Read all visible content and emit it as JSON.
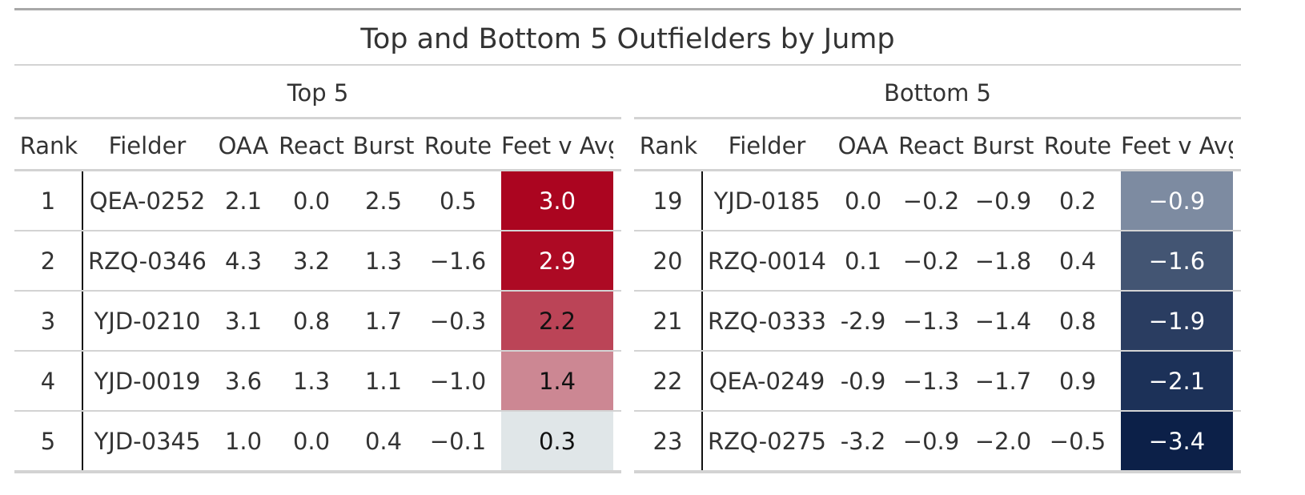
{
  "title": "Top and Bottom 5 Outfielders by Jump",
  "columns": {
    "rank": "Rank",
    "fielder": "Fielder",
    "oaa": "OAA",
    "react": "React",
    "burst": "Burst",
    "route": "Route",
    "feet": "Feet v Avg"
  },
  "top": {
    "label": "Top 5",
    "rows": [
      {
        "rank": "1",
        "fielder": "QEA-0252",
        "oaa": "2.1",
        "react": "0.0",
        "burst": "2.5",
        "route": "0.5",
        "feet": "3.0",
        "bg": "#ab0520",
        "fg": "#ffffff"
      },
      {
        "rank": "2",
        "fielder": "RZQ-0346",
        "oaa": "4.3",
        "react": "3.2",
        "burst": "1.3",
        "route": "−1.6",
        "feet": "2.9",
        "bg": "#ad0a24",
        "fg": "#ffffff"
      },
      {
        "rank": "3",
        "fielder": "YJD-0210",
        "oaa": "3.1",
        "react": "0.8",
        "burst": "1.7",
        "route": "−0.3",
        "feet": "2.2",
        "bg": "#bb4457",
        "fg": "#111111"
      },
      {
        "rank": "4",
        "fielder": "YJD-0019",
        "oaa": "3.6",
        "react": "1.3",
        "burst": "1.1",
        "route": "−1.0",
        "feet": "1.4",
        "bg": "#cc8793",
        "fg": "#111111"
      },
      {
        "rank": "5",
        "fielder": "YJD-0345",
        "oaa": "1.0",
        "react": "0.0",
        "burst": "0.4",
        "route": "−0.1",
        "feet": "0.3",
        "bg": "#e0e6e8",
        "fg": "#111111"
      }
    ]
  },
  "bottom": {
    "label": "Bottom 5",
    "rows": [
      {
        "rank": "19",
        "fielder": "YJD-0185",
        "oaa": "0.0",
        "react": "−0.2",
        "burst": "−0.9",
        "route": "0.2",
        "feet": "−0.9",
        "bg": "#7d8ba1",
        "fg": "#ffffff"
      },
      {
        "rank": "20",
        "fielder": "RZQ-0014",
        "oaa": "0.1",
        "react": "−0.2",
        "burst": "−1.8",
        "route": "0.4",
        "feet": "−1.6",
        "bg": "#435573",
        "fg": "#ffffff"
      },
      {
        "rank": "21",
        "fielder": "RZQ-0333",
        "oaa": "-2.9",
        "react": "−1.3",
        "burst": "−1.4",
        "route": "0.8",
        "feet": "−1.9",
        "bg": "#2a3d61",
        "fg": "#ffffff"
      },
      {
        "rank": "22",
        "fielder": "QEA-0249",
        "oaa": "-0.9",
        "react": "−1.3",
        "burst": "−1.7",
        "route": "0.9",
        "feet": "−2.1",
        "bg": "#1c3158",
        "fg": "#ffffff"
      },
      {
        "rank": "23",
        "fielder": "RZQ-0275",
        "oaa": "-3.2",
        "react": "−0.9",
        "burst": "−2.0",
        "route": "−0.5",
        "feet": "−3.4",
        "bg": "#0c2048",
        "fg": "#ffffff"
      }
    ]
  }
}
